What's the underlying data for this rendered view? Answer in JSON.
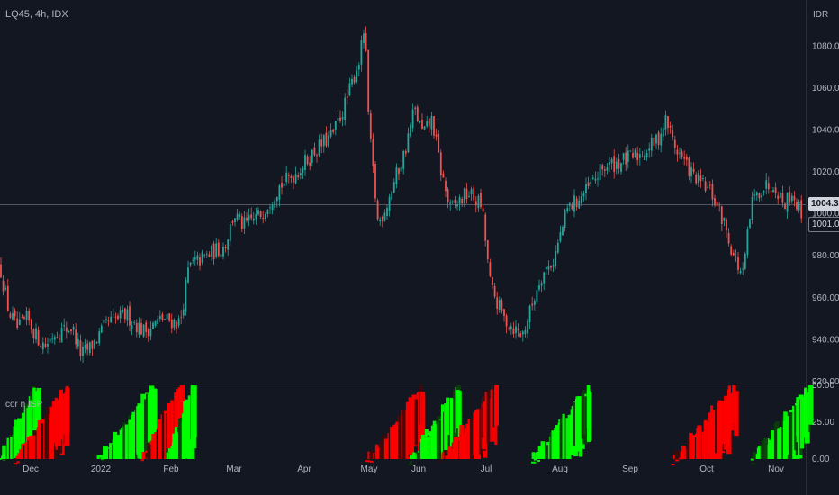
{
  "header": {
    "symbol_title": "LQ45, 4h, IDX",
    "currency": "IDR"
  },
  "indicator": {
    "title": "cor  n ISP"
  },
  "price_tags": {
    "current": "1004.32",
    "previous": "1001.02"
  },
  "colors": {
    "background": "#131722",
    "up": "#26a69a",
    "down": "#ef5350",
    "heat_up": "#00ff00",
    "heat_down": "#ff0000",
    "text": "#b2b5be"
  },
  "chart_data": {
    "type": "candlestick",
    "main_pane": {
      "y_ticks": [
        "1080.00",
        "1060.00",
        "1040.00",
        "1020.00",
        "1000.00",
        "980.00",
        "960.00",
        "940.00",
        "920.00"
      ],
      "y_values": [
        1080,
        1060,
        1040,
        1020,
        1000,
        980,
        960,
        940,
        920
      ],
      "ylim": [
        920,
        1096
      ],
      "current_price": 1004.32,
      "previous_price": 1001.02,
      "close_anchors": [
        [
          0,
          975
        ],
        [
          10,
          953
        ],
        [
          20,
          945
        ],
        [
          30,
          950
        ],
        [
          40,
          942
        ],
        [
          50,
          937
        ],
        [
          60,
          943
        ],
        [
          80,
          946
        ],
        [
          90,
          933
        ],
        [
          100,
          936
        ],
        [
          120,
          948
        ],
        [
          140,
          952
        ],
        [
          160,
          944
        ],
        [
          180,
          950
        ],
        [
          200,
          948
        ],
        [
          210,
          975
        ],
        [
          230,
          980
        ],
        [
          250,
          985
        ],
        [
          260,
          1000
        ],
        [
          270,
          994
        ],
        [
          290,
          1000
        ],
        [
          310,
          1013
        ],
        [
          330,
          1020
        ],
        [
          350,
          1030
        ],
        [
          370,
          1038
        ],
        [
          385,
          1054
        ],
        [
          400,
          1075
        ],
        [
          405,
          1090
        ],
        [
          410,
          1040
        ],
        [
          420,
          995
        ],
        [
          430,
          1005
        ],
        [
          440,
          1018
        ],
        [
          450,
          1030
        ],
        [
          460,
          1050
        ],
        [
          470,
          1038
        ],
        [
          480,
          1045
        ],
        [
          490,
          1020
        ],
        [
          500,
          1002
        ],
        [
          520,
          1010
        ],
        [
          535,
          1004
        ],
        [
          545,
          965
        ],
        [
          560,
          950
        ],
        [
          580,
          942
        ],
        [
          590,
          955
        ],
        [
          600,
          970
        ],
        [
          615,
          978
        ],
        [
          630,
          1002
        ],
        [
          650,
          1010
        ],
        [
          670,
          1022
        ],
        [
          690,
          1025
        ],
        [
          710,
          1028
        ],
        [
          730,
          1035
        ],
        [
          740,
          1045
        ],
        [
          750,
          1032
        ],
        [
          770,
          1018
        ],
        [
          790,
          1010
        ],
        [
          805,
          995
        ],
        [
          815,
          980
        ],
        [
          825,
          970
        ],
        [
          835,
          1005
        ],
        [
          845,
          1012
        ],
        [
          860,
          1015
        ],
        [
          870,
          1005
        ],
        [
          880,
          1010
        ],
        [
          890,
          1000
        ]
      ]
    },
    "indicator_pane": {
      "y_ticks": [
        "50.00",
        "25.00",
        "0.00"
      ],
      "y_values": [
        50,
        25,
        0
      ],
      "ylim": [
        0,
        50
      ],
      "bursts": [
        {
          "x0": 0,
          "x1": 40,
          "type": "up"
        },
        {
          "x0": 15,
          "x1": 75,
          "type": "down"
        },
        {
          "x0": 110,
          "x1": 170,
          "type": "up"
        },
        {
          "x0": 158,
          "x1": 198,
          "type": "down"
        },
        {
          "x0": 185,
          "x1": 214,
          "type": "up"
        },
        {
          "x0": 408,
          "x1": 470,
          "type": "down"
        },
        {
          "x0": 455,
          "x1": 510,
          "type": "up"
        },
        {
          "x0": 490,
          "x1": 550,
          "type": "down"
        },
        {
          "x0": 590,
          "x1": 655,
          "type": "up"
        },
        {
          "x0": 748,
          "x1": 815,
          "type": "down"
        },
        {
          "x0": 835,
          "x1": 898,
          "type": "up"
        }
      ]
    },
    "x_ticks": [
      {
        "label": "Dec",
        "x": 34
      },
      {
        "label": "2022",
        "x": 112
      },
      {
        "label": "Feb",
        "x": 190
      },
      {
        "label": "Mar",
        "x": 260
      },
      {
        "label": "Apr",
        "x": 338
      },
      {
        "label": "May",
        "x": 410
      },
      {
        "label": "Jun",
        "x": 465
      },
      {
        "label": "Jul",
        "x": 540
      },
      {
        "label": "Aug",
        "x": 622
      },
      {
        "label": "Sep",
        "x": 700
      },
      {
        "label": "Oct",
        "x": 785
      },
      {
        "label": "Nov",
        "x": 862
      }
    ],
    "grid": false
  }
}
